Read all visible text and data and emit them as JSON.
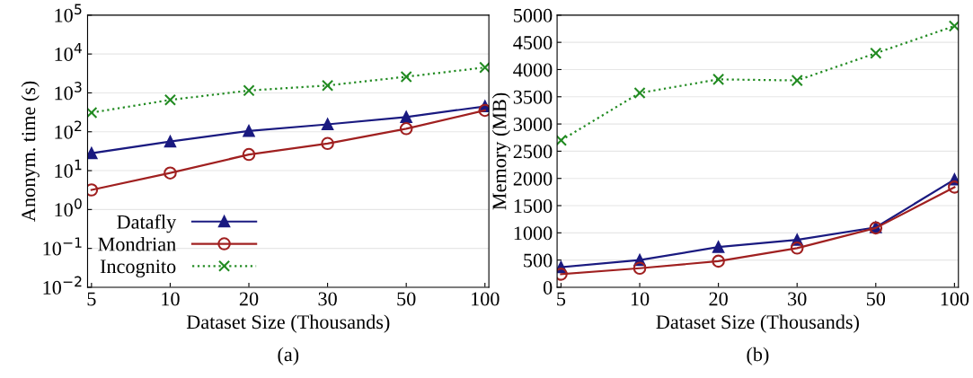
{
  "chart_data": [
    {
      "type": "line",
      "xlabel": "Dataset Size (Thousands)",
      "ylabel": "Anonym. time (s)",
      "annotations": [
        "(a)"
      ],
      "categories": [
        "5",
        "10",
        "20",
        "30",
        "50",
        "100"
      ],
      "log": true,
      "ylim": [
        0.01,
        100000
      ],
      "yticks": [
        {
          "value": 0.01,
          "label": "10$^{−2}$"
        },
        {
          "value": 0.1,
          "label": "10$^{−1}$"
        },
        {
          "value": 1,
          "label": "10$^{0}$"
        },
        {
          "value": 10,
          "label": "10$^{1}$"
        },
        {
          "value": 100,
          "label": "10$^{2}$"
        },
        {
          "value": 1000,
          "label": "10$^{3}$"
        },
        {
          "value": 10000,
          "label": "10$^{4}$"
        },
        {
          "value": 100000,
          "label": "10$^{5}$"
        }
      ],
      "grid": "y",
      "legend": "bottom left",
      "series": [
        {
          "name": "Datafly",
          "color": "#1a1a80",
          "marker": "triangle",
          "line_style": "solid",
          "values": [
            28,
            56,
            105,
            155,
            240,
            450
          ]
        },
        {
          "name": "Mondrian",
          "color": "#a02020",
          "marker": "circle",
          "line_style": "solid",
          "values": [
            3.2,
            8.7,
            26,
            50,
            120,
            355
          ]
        },
        {
          "name": "Incognito",
          "color": "#228b22",
          "marker": "cross",
          "line_style": "dotted",
          "values": [
            310,
            660,
            1150,
            1550,
            2600,
            4500
          ]
        }
      ]
    },
    {
      "type": "line",
      "xlabel": "Dataset Size (Thousands)",
      "ylabel": "Memory (MB)",
      "annotations": [
        "(b)"
      ],
      "categories": [
        "5",
        "10",
        "20",
        "30",
        "50",
        "100"
      ],
      "ylim": [
        0,
        5000
      ],
      "yticks": [
        0,
        500,
        1000,
        1500,
        2000,
        2500,
        3000,
        3500,
        4000,
        4500,
        5000
      ],
      "grid": "y",
      "series": [
        {
          "color": "#1a1a80",
          "marker": "triangle",
          "line_style": "solid",
          "values": [
            370,
            500,
            740,
            870,
            1100,
            1980
          ]
        },
        {
          "color": "#a02020",
          "marker": "circle",
          "line_style": "solid",
          "values": [
            240,
            350,
            480,
            720,
            1090,
            1840
          ]
        },
        {
          "color": "#228b22",
          "marker": "cross",
          "line_style": "dotted",
          "values": [
            2700,
            3570,
            3820,
            3800,
            4300,
            4800
          ]
        }
      ]
    }
  ]
}
